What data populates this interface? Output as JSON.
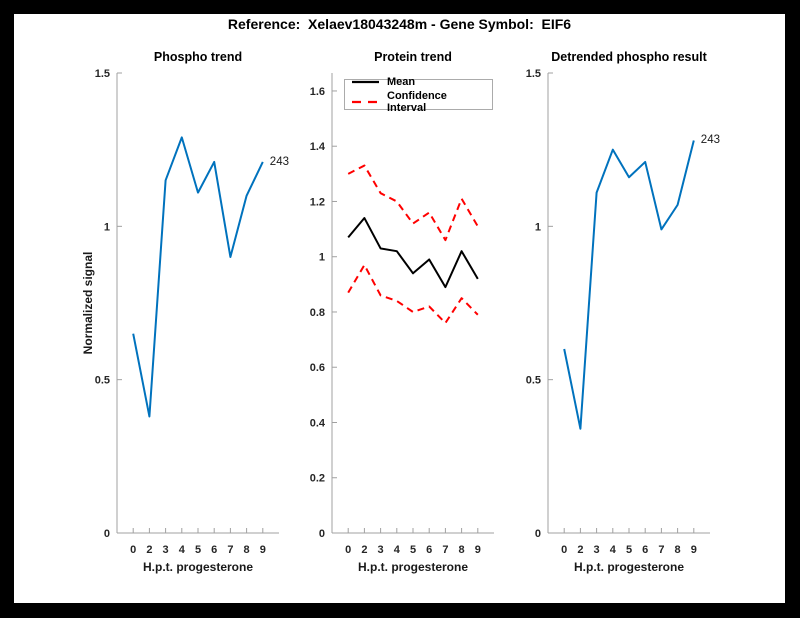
{
  "window": {
    "frame_color": "#000000",
    "canvas_color": "#ffffff"
  },
  "figure_title": "Reference:  Xelaev18043248m - Gene Symbol:  EIF6",
  "colors": {
    "blue": "#0072BD",
    "red": "#FF0000",
    "black": "#000000",
    "axis": "#a0a0a0",
    "text": "#262626"
  },
  "chart_data": [
    {
      "type": "line",
      "title": "Phospho trend",
      "ylabel": "Normalized signal",
      "xlabel": "H.p.t. progesterone",
      "x_tick_labels": [
        "0",
        "2",
        "3",
        "4",
        "5",
        "6",
        "7",
        "8",
        "9"
      ],
      "ylim": [
        0,
        1.5
      ],
      "yticks": [
        0,
        0.5,
        1,
        1.5
      ],
      "ytick_labels": [
        "0",
        "0.5",
        "1",
        "1.5"
      ],
      "grid": false,
      "series": [
        {
          "name": "phospho-signal",
          "color": "#0072BD",
          "style": "solid",
          "values": [
            0.65,
            0.38,
            1.15,
            1.29,
            1.11,
            1.21,
            0.9,
            1.1,
            1.21
          ]
        }
      ],
      "end_label": "243"
    },
    {
      "type": "line",
      "title": "Protein trend",
      "ylabel": "",
      "xlabel": "H.p.t. progesterone",
      "x_tick_labels": [
        "0",
        "2",
        "3",
        "4",
        "5",
        "6",
        "7",
        "8",
        "9"
      ],
      "ylim": [
        0,
        1.665
      ],
      "yticks": [
        0,
        0.2,
        0.4,
        0.6,
        0.8,
        1,
        1.2,
        1.4,
        1.6
      ],
      "ytick_labels": [
        "0",
        "0.2",
        "0.4",
        "0.6",
        "0.8",
        "1",
        "1.2",
        "1.4",
        "1.6"
      ],
      "grid": false,
      "legend_position": "top-left",
      "series": [
        {
          "name": "mean",
          "color": "#000000",
          "style": "solid",
          "values": [
            1.07,
            1.14,
            1.03,
            1.02,
            0.94,
            0.99,
            0.89,
            1.02,
            0.92
          ]
        },
        {
          "name": "confidence-upper",
          "color": "#FF0000",
          "style": "dashed",
          "values": [
            1.3,
            1.33,
            1.23,
            1.2,
            1.12,
            1.16,
            1.06,
            1.21,
            1.11
          ]
        },
        {
          "name": "confidence-lower",
          "color": "#FF0000",
          "style": "dashed",
          "values": [
            0.87,
            0.97,
            0.86,
            0.84,
            0.8,
            0.82,
            0.76,
            0.85,
            0.79
          ]
        }
      ],
      "legend": {
        "entries": [
          {
            "label": "Mean",
            "color": "#000000",
            "style": "solid"
          },
          {
            "label": "Confidence Interval",
            "color": "#FF0000",
            "style": "dashed"
          }
        ]
      },
      "end_label": null
    },
    {
      "type": "line",
      "title": "Detrended phospho result",
      "ylabel": "",
      "xlabel": "H.p.t. progesterone",
      "x_tick_labels": [
        "0",
        "2",
        "3",
        "4",
        "5",
        "6",
        "7",
        "8",
        "9"
      ],
      "ylim": [
        0,
        1.5
      ],
      "yticks": [
        0,
        0.5,
        1,
        1.5
      ],
      "ytick_labels": [
        "0",
        "0.5",
        "1",
        "1.5"
      ],
      "grid": false,
      "series": [
        {
          "name": "detrended-phospho",
          "color": "#0072BD",
          "style": "solid",
          "values": [
            0.6,
            0.34,
            1.11,
            1.25,
            1.16,
            1.21,
            0.99,
            1.07,
            1.28
          ]
        }
      ],
      "end_label": "243"
    }
  ]
}
